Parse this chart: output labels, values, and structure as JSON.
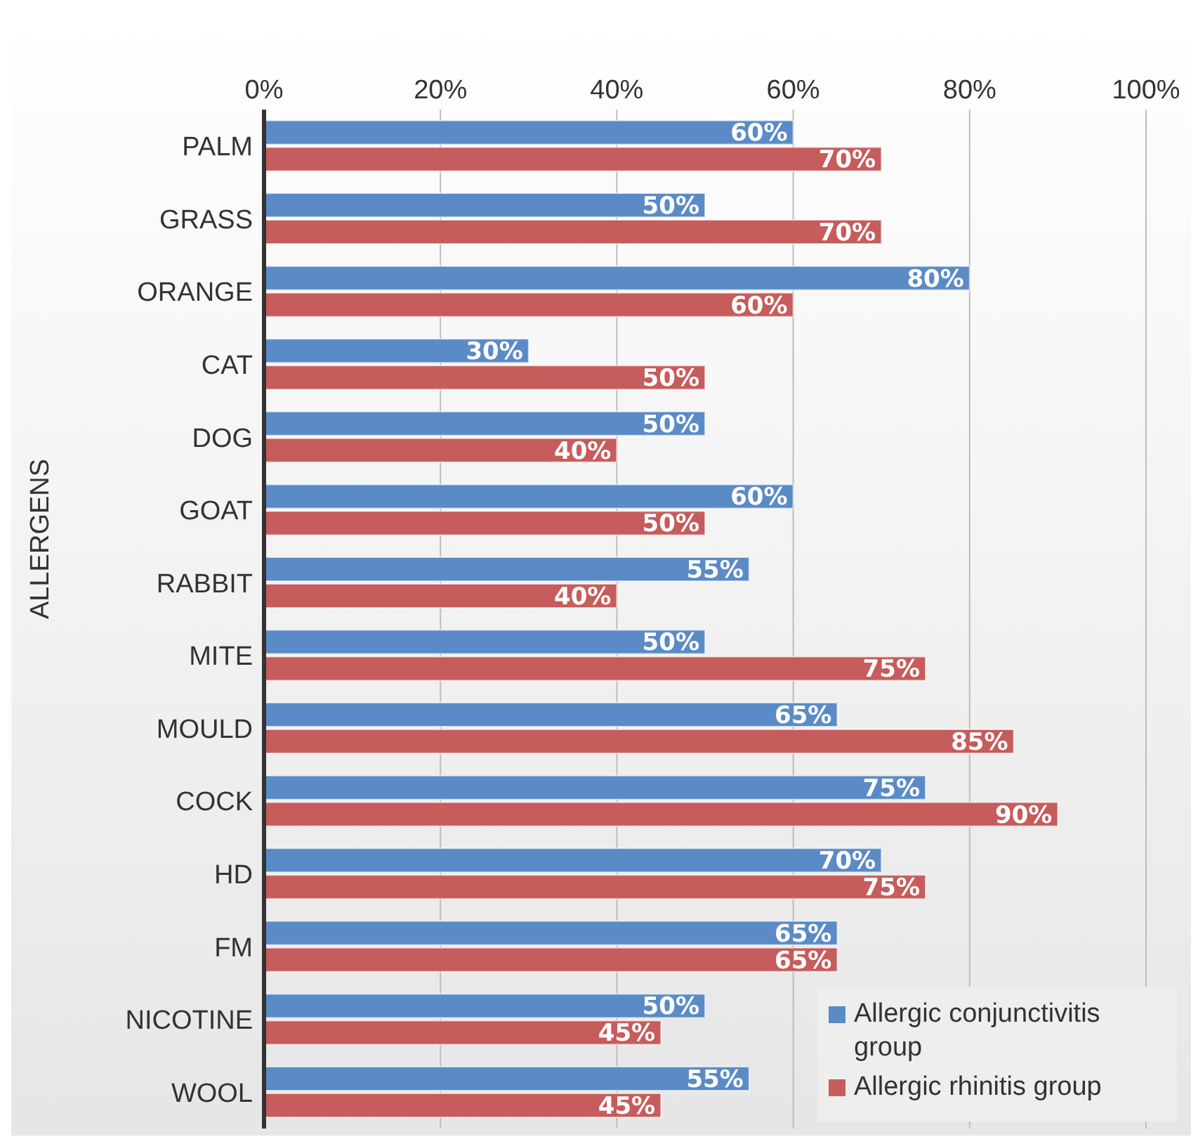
{
  "chart_data": {
    "type": "bar",
    "orientation": "horizontal",
    "ylabel": "ALLERGENS",
    "categories": [
      "PALM",
      "GRASS",
      "ORANGE",
      "CAT",
      "DOG",
      "GOAT",
      "RABBIT",
      "MITE",
      "MOULD",
      "COCK",
      "HD",
      "FM",
      "NICOTINE",
      "WOOL"
    ],
    "series": [
      {
        "name": "Allergic conjunctivitis group",
        "color": "#5b8bc6",
        "values": [
          60,
          50,
          80,
          30,
          50,
          60,
          55,
          50,
          65,
          75,
          70,
          65,
          50,
          55
        ],
        "value_labels": [
          "60%",
          "50%",
          "80%",
          "30%",
          "50%",
          "60%",
          "55%",
          "50%",
          "65%",
          "75%",
          "70%",
          "65%",
          "50%",
          "55%"
        ]
      },
      {
        "name": "Allergic rhinitis group",
        "color": "#c65c5b",
        "values": [
          70,
          70,
          60,
          50,
          40,
          50,
          40,
          75,
          85,
          90,
          75,
          65,
          45,
          45
        ],
        "value_labels": [
          "70%",
          "70%",
          "60%",
          "50%",
          "40%",
          "50%",
          "40%",
          "75%",
          "85%",
          "90%",
          "75%",
          "65%",
          "45%",
          "45%"
        ]
      }
    ],
    "xlim": [
      0,
      100
    ],
    "xticks": [
      {
        "value": 0,
        "label": "0%"
      },
      {
        "value": 20,
        "label": "20%"
      },
      {
        "value": 40,
        "label": "40%"
      },
      {
        "value": 60,
        "label": "60%"
      },
      {
        "value": 80,
        "label": "80%"
      },
      {
        "value": 100,
        "label": "100%"
      }
    ],
    "grid": "x",
    "legend": "bottom right"
  }
}
